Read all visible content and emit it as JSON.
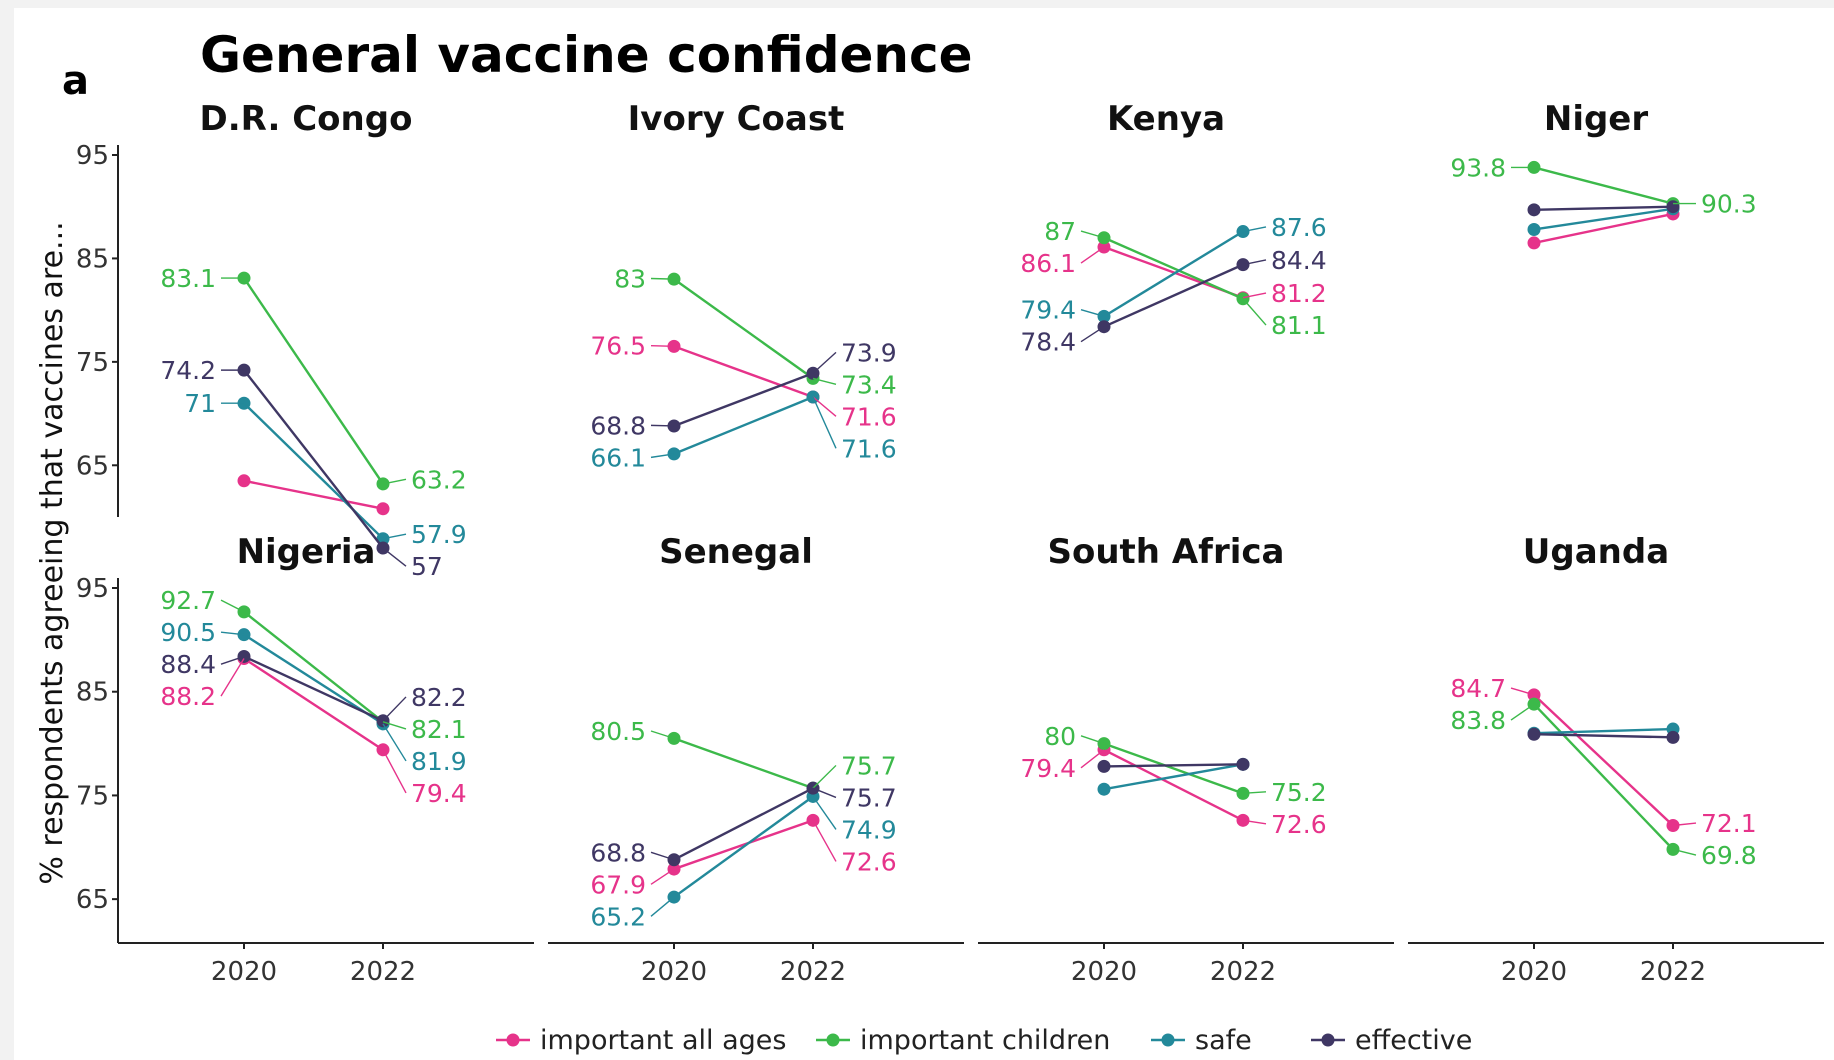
{
  "chart_data": {
    "type": "line",
    "panel_label": "a",
    "title": "General vaccine confidence",
    "ylabel": "% respondents agreeing that vaccines are...",
    "ylim": [
      55,
      95
    ],
    "yticks": [
      65,
      75,
      85,
      95
    ],
    "x": [
      "2020",
      "2022"
    ],
    "colors": {
      "important all ages": "#e6338a",
      "important children": "#3cb94a",
      "safe": "#23899a",
      "effective": "#3f3764"
    },
    "legend": [
      "important all ages",
      "important children",
      "safe",
      "effective"
    ],
    "legend_position": "bottom",
    "grid": false,
    "panels": [
      {
        "name": "D.R. Congo",
        "series": [
          {
            "name": "important all ages",
            "values": [
              63.5,
              60.8
            ],
            "labels": [
              "",
              ""
            ]
          },
          {
            "name": "important children",
            "values": [
              83.1,
              63.2
            ],
            "labels": [
              "83.1",
              "63.2"
            ]
          },
          {
            "name": "safe",
            "values": [
              71,
              57.9
            ],
            "labels": [
              "71",
              "57.9"
            ]
          },
          {
            "name": "effective",
            "values": [
              74.2,
              57
            ],
            "labels": [
              "74.2",
              "57"
            ]
          }
        ]
      },
      {
        "name": "Ivory Coast",
        "series": [
          {
            "name": "important all ages",
            "values": [
              76.5,
              71.6
            ],
            "labels": [
              "76.5",
              "71.6"
            ]
          },
          {
            "name": "important children",
            "values": [
              83,
              73.4
            ],
            "labels": [
              "83",
              "73.4"
            ]
          },
          {
            "name": "safe",
            "values": [
              66.1,
              71.6
            ],
            "labels": [
              "66.1",
              "71.6"
            ]
          },
          {
            "name": "effective",
            "values": [
              68.8,
              73.9
            ],
            "labels": [
              "68.8",
              "73.9"
            ]
          }
        ]
      },
      {
        "name": "Kenya",
        "series": [
          {
            "name": "important all ages",
            "values": [
              86.1,
              81.2
            ],
            "labels": [
              "86.1",
              "81.2"
            ]
          },
          {
            "name": "important children",
            "values": [
              87,
              81.1
            ],
            "labels": [
              "87",
              "81.1"
            ]
          },
          {
            "name": "safe",
            "values": [
              79.4,
              87.6
            ],
            "labels": [
              "79.4",
              "87.6"
            ]
          },
          {
            "name": "effective",
            "values": [
              78.4,
              84.4
            ],
            "labels": [
              "78.4",
              "84.4"
            ]
          }
        ]
      },
      {
        "name": "Niger",
        "series": [
          {
            "name": "important all ages",
            "values": [
              86.5,
              89.3
            ],
            "labels": [
              "",
              ""
            ]
          },
          {
            "name": "important children",
            "values": [
              93.8,
              90.3
            ],
            "labels": [
              "93.8",
              "90.3"
            ]
          },
          {
            "name": "safe",
            "values": [
              87.8,
              89.8
            ],
            "labels": [
              "",
              ""
            ]
          },
          {
            "name": "effective",
            "values": [
              89.7,
              90.0
            ],
            "labels": [
              "",
              ""
            ]
          }
        ]
      },
      {
        "name": "Nigeria",
        "series": [
          {
            "name": "important all ages",
            "values": [
              88.2,
              79.4
            ],
            "labels": [
              "88.2",
              "79.4"
            ]
          },
          {
            "name": "important children",
            "values": [
              92.7,
              82.1
            ],
            "labels": [
              "92.7",
              "82.1"
            ]
          },
          {
            "name": "safe",
            "values": [
              90.5,
              81.9
            ],
            "labels": [
              "90.5",
              "81.9"
            ]
          },
          {
            "name": "effective",
            "values": [
              88.4,
              82.2
            ],
            "labels": [
              "88.4",
              "82.2"
            ]
          }
        ]
      },
      {
        "name": "Senegal",
        "series": [
          {
            "name": "important all ages",
            "values": [
              67.9,
              72.6
            ],
            "labels": [
              "67.9",
              "72.6"
            ]
          },
          {
            "name": "important children",
            "values": [
              80.5,
              75.7
            ],
            "labels": [
              "80.5",
              "75.7"
            ]
          },
          {
            "name": "safe",
            "values": [
              65.2,
              74.9
            ],
            "labels": [
              "65.2",
              "74.9"
            ]
          },
          {
            "name": "effective",
            "values": [
              68.8,
              75.7
            ],
            "labels": [
              "68.8",
              "75.7"
            ]
          }
        ]
      },
      {
        "name": "South Africa",
        "series": [
          {
            "name": "important all ages",
            "values": [
              79.4,
              72.6
            ],
            "labels": [
              "79.4",
              "72.6"
            ]
          },
          {
            "name": "important children",
            "values": [
              80,
              75.2
            ],
            "labels": [
              "80",
              "75.2"
            ]
          },
          {
            "name": "safe",
            "values": [
              75.6,
              78.0
            ],
            "labels": [
              "",
              ""
            ]
          },
          {
            "name": "effective",
            "values": [
              77.8,
              78.0
            ],
            "labels": [
              "",
              ""
            ]
          }
        ]
      },
      {
        "name": "Uganda",
        "series": [
          {
            "name": "important all ages",
            "values": [
              84.7,
              72.1
            ],
            "labels": [
              "84.7",
              "72.1"
            ]
          },
          {
            "name": "important children",
            "values": [
              83.8,
              69.8
            ],
            "labels": [
              "83.8",
              "69.8"
            ]
          },
          {
            "name": "safe",
            "values": [
              81.0,
              81.4
            ],
            "labels": [
              "",
              ""
            ]
          },
          {
            "name": "effective",
            "values": [
              80.9,
              80.6
            ],
            "labels": [
              "",
              ""
            ]
          }
        ]
      }
    ]
  }
}
